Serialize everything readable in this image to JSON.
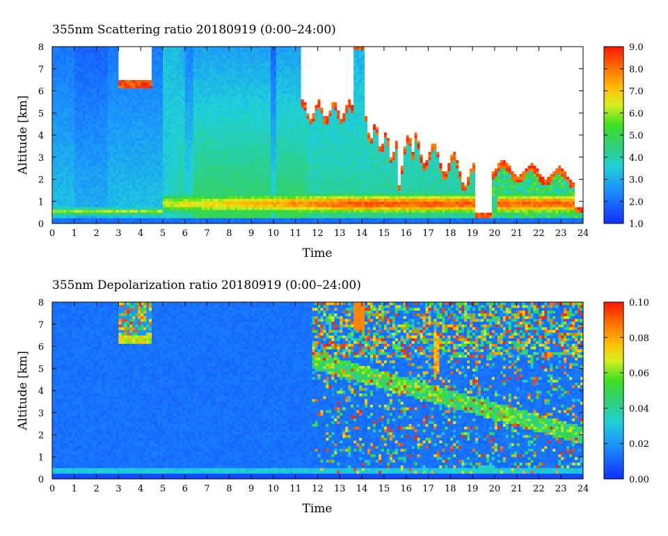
{
  "chart_data": [
    {
      "type": "heatmap",
      "title": "355nm Scattering ratio  20180919 (0:00–24:00)",
      "xlabel": "Time",
      "ylabel": "Altitude [km]",
      "xlim": [
        0,
        24
      ],
      "ylim": [
        0,
        8
      ],
      "x_ticks": [
        "0",
        "1",
        "2",
        "3",
        "4",
        "5",
        "6",
        "7",
        "8",
        "9",
        "10",
        "11",
        "12",
        "13",
        "14",
        "15",
        "16",
        "17",
        "18",
        "19",
        "20",
        "21",
        "22",
        "23",
        "24"
      ],
      "y_ticks": [
        "0",
        "1",
        "2",
        "3",
        "4",
        "5",
        "6",
        "7",
        "8"
      ],
      "colorbar": {
        "range": [
          1.0,
          9.0
        ],
        "ticks": [
          "1.0",
          "2.0",
          "3.0",
          "4.0",
          "5.0",
          "6.0",
          "7.0",
          "8.0",
          "9.0"
        ]
      },
      "colors": {
        "low": "#1a3cff",
        "mid": "#30d040",
        "high": "#ff2000",
        "missing": "#ffffff"
      }
    },
    {
      "type": "heatmap",
      "title": "355nm Depolarization ratio  20180919 (0:00–24:00)",
      "xlabel": "Time",
      "ylabel": "Altitude [km]",
      "xlim": [
        0,
        24
      ],
      "ylim": [
        0,
        8
      ],
      "x_ticks": [
        "0",
        "1",
        "2",
        "3",
        "4",
        "5",
        "6",
        "7",
        "8",
        "9",
        "10",
        "11",
        "12",
        "13",
        "14",
        "15",
        "16",
        "17",
        "18",
        "19",
        "20",
        "21",
        "22",
        "23",
        "24"
      ],
      "y_ticks": [
        "0",
        "1",
        "2",
        "3",
        "4",
        "5",
        "6",
        "7",
        "8"
      ],
      "colorbar": {
        "range": [
          0.0,
          0.1
        ],
        "ticks": [
          "0.00",
          "0.02",
          "0.04",
          "0.06",
          "0.08",
          "0.10"
        ]
      },
      "colors": {
        "low": "#1a3cff",
        "mid": "#30d040",
        "high": "#ff2000",
        "missing": "#ffffff"
      }
    }
  ]
}
